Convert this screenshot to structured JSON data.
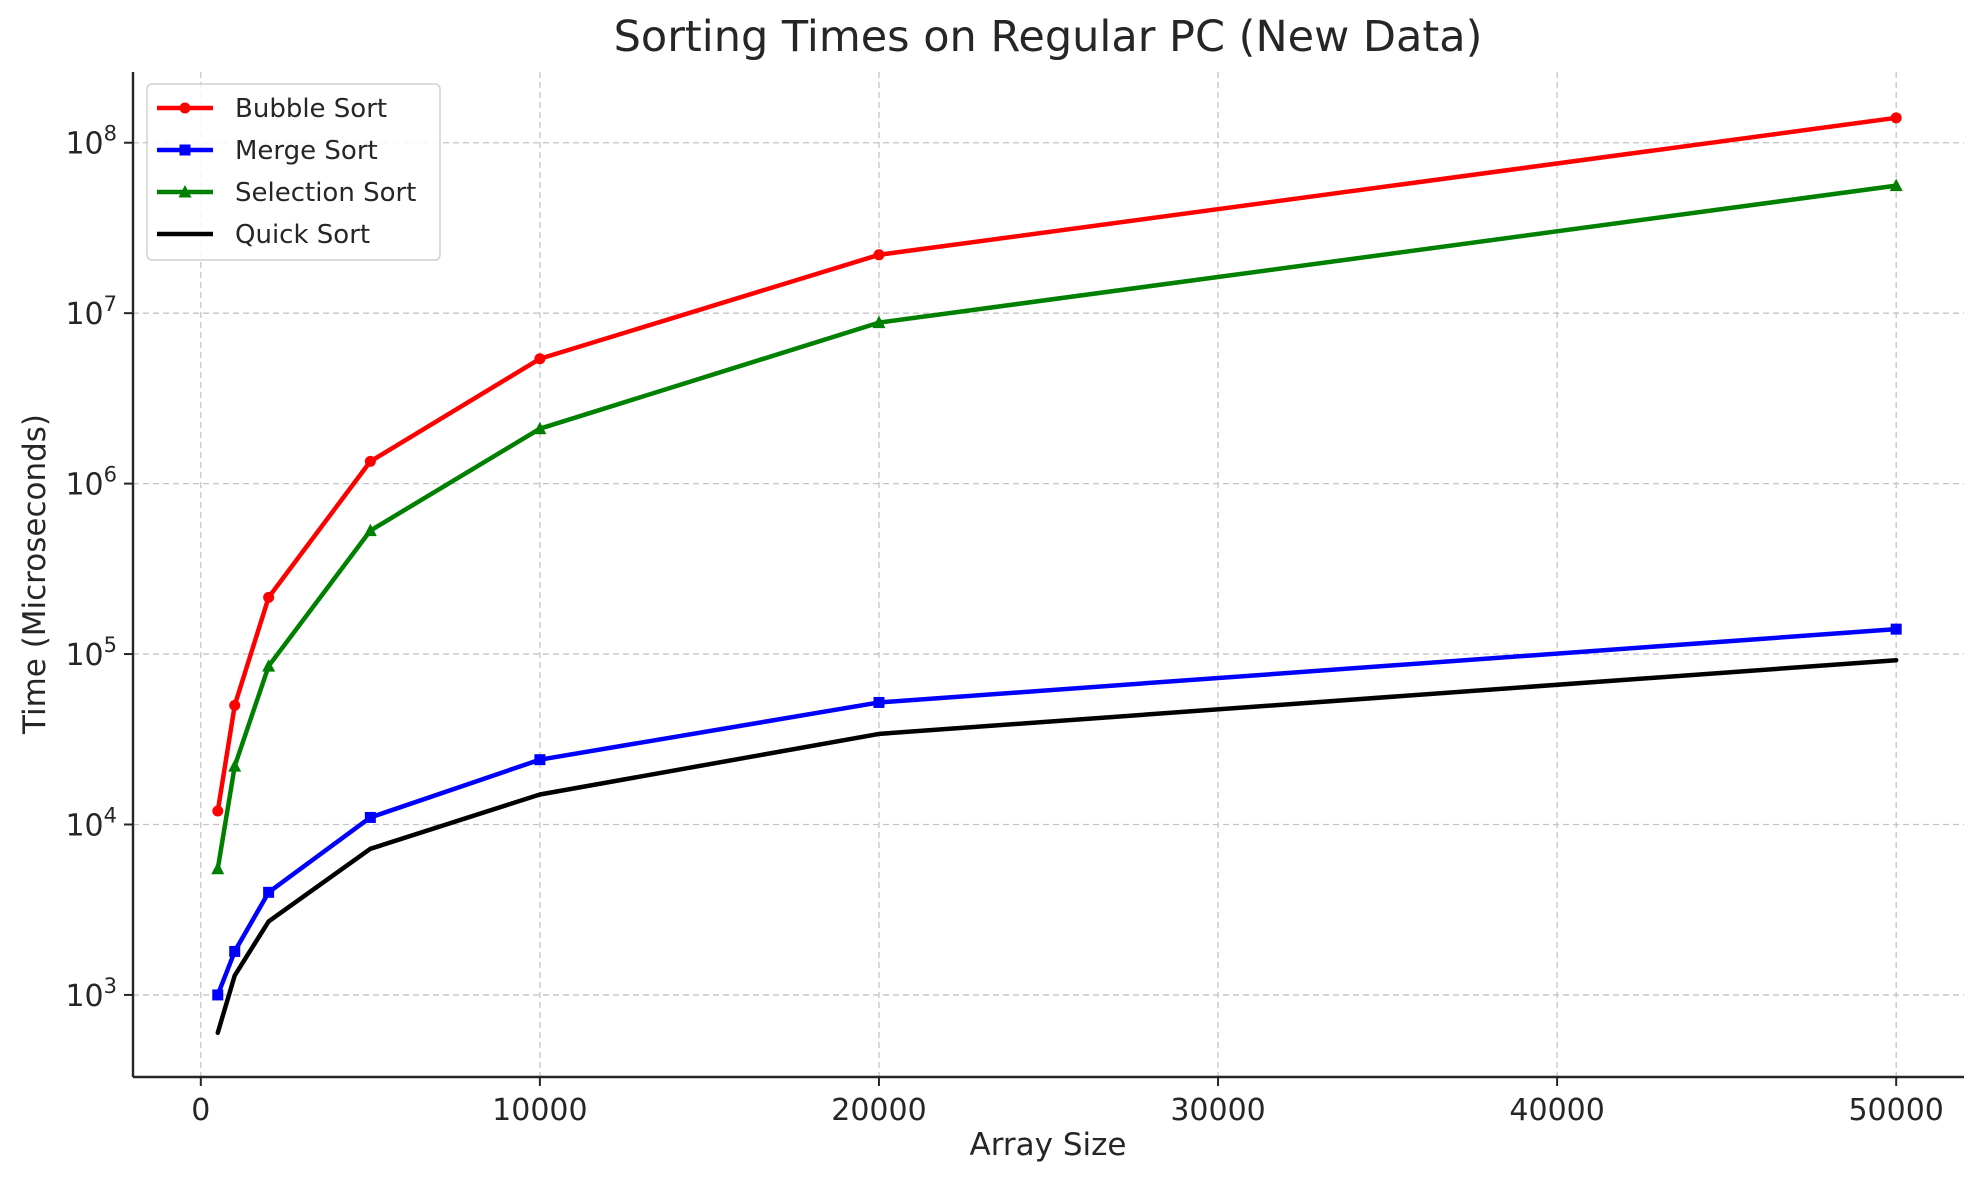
{
  "chart_data": {
    "type": "line",
    "title": "Sorting Times on Regular PC (New Data)",
    "xlabel": "Array Size",
    "ylabel": "Time (Microseconds)",
    "xlim": [
      -2000,
      52000
    ],
    "ylim": [
      330,
      260000000
    ],
    "yscale": "log",
    "grid": true,
    "legend_position": "top-left",
    "x_ticks": [
      0,
      10000,
      20000,
      30000,
      40000,
      50000
    ],
    "x_tick_labels": [
      "0",
      "10000",
      "20000",
      "30000",
      "40000",
      "50000"
    ],
    "y_ticks": [
      1000,
      10000,
      100000,
      1000000,
      10000000,
      100000000
    ],
    "y_tick_labels": [
      {
        "base": "10",
        "exp": "3"
      },
      {
        "base": "10",
        "exp": "4"
      },
      {
        "base": "10",
        "exp": "5"
      },
      {
        "base": "10",
        "exp": "6"
      },
      {
        "base": "10",
        "exp": "7"
      },
      {
        "base": "10",
        "exp": "8"
      }
    ],
    "x": [
      500,
      1000,
      2000,
      5000,
      10000,
      20000,
      50000
    ],
    "series": [
      {
        "name": "Bubble Sort",
        "color": "#ff0000",
        "marker": "circle",
        "values": [
          12000,
          50000,
          215000,
          1350000,
          5400000,
          22000000,
          140000000
        ]
      },
      {
        "name": "Merge Sort",
        "color": "#0000ff",
        "marker": "square",
        "values": [
          1000,
          1800,
          4000,
          11000,
          24000,
          52000,
          140000
        ]
      },
      {
        "name": "Selection Sort",
        "color": "#008000",
        "marker": "triangle",
        "values": [
          5500,
          22000,
          85000,
          530000,
          2100000,
          8800000,
          56000000
        ]
      },
      {
        "name": "Quick Sort",
        "color": "#000000",
        "marker": "none",
        "values": [
          600,
          1300,
          2700,
          7200,
          15000,
          34000,
          92000
        ]
      }
    ]
  }
}
